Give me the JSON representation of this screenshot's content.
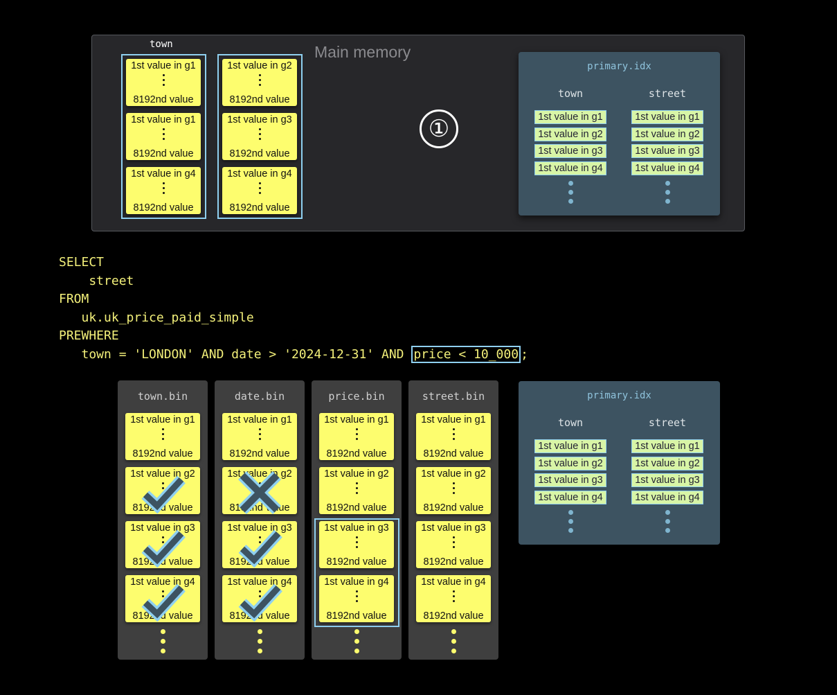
{
  "main_memory": {
    "label": "Main memory",
    "column_label": "town",
    "groups": [
      {
        "cards": [
          {
            "first": "1st value in g1",
            "last": "8192nd value"
          },
          {
            "first": "1st value in g1",
            "last": "8192nd value"
          },
          {
            "first": "1st value in g4",
            "last": "8192nd value"
          }
        ]
      },
      {
        "cards": [
          {
            "first": "1st value in g2",
            "last": "8192nd value"
          },
          {
            "first": "1st value in g3",
            "last": "8192nd value"
          },
          {
            "first": "1st value in g4",
            "last": "8192nd value"
          }
        ]
      }
    ],
    "step_marker": "①"
  },
  "primary_idx_top": {
    "title": "primary.idx",
    "columns": [
      {
        "name": "town",
        "entries": [
          "1st value in g1",
          "1st value in g2",
          "1st value in g3",
          "1st value in g4"
        ]
      },
      {
        "name": "street",
        "entries": [
          "1st value in g1",
          "1st value in g2",
          "1st value in g3",
          "1st value in g4"
        ]
      }
    ]
  },
  "query": {
    "lines": [
      "SELECT",
      "    street",
      "FROM",
      "   uk.uk_price_paid_simple",
      "PREWHERE"
    ],
    "last_line_prefix": "   town = 'LONDON' AND date > '2024-12-31' AND ",
    "highlighted": "price < 10_000",
    "last_line_suffix": ";"
  },
  "bin_files": [
    {
      "name": "town.bin",
      "granules": [
        "1st value in g1",
        "1st value in g2",
        "1st value in g3",
        "1st value in g4"
      ],
      "last": "8192nd value",
      "marks": [
        null,
        "check",
        "check",
        "check"
      ]
    },
    {
      "name": "date.bin",
      "granules": [
        "1st value in g1",
        "1st value in g2",
        "1st value in g3",
        "1st value in g4"
      ],
      "last": "8192nd value",
      "marks": [
        null,
        "cross",
        "check",
        "check"
      ]
    },
    {
      "name": "price.bin",
      "granules": [
        "1st value in g1",
        "1st value in g2",
        "1st value in g3",
        "1st value in g4"
      ],
      "last": "8192nd value",
      "marks": [
        null,
        null,
        null,
        null
      ],
      "highlighted_granules": [
        3,
        4
      ]
    },
    {
      "name": "street.bin",
      "granules": [
        "1st value in g1",
        "1st value in g2",
        "1st value in g3",
        "1st value in g4"
      ],
      "last": "8192nd value",
      "marks": [
        null,
        null,
        null,
        null
      ]
    }
  ],
  "primary_idx_bottom": {
    "title": "primary.idx",
    "columns": [
      {
        "name": "town",
        "entries": [
          "1st value in g1",
          "1st value in g2",
          "1st value in g3",
          "1st value in g4"
        ]
      },
      {
        "name": "street",
        "entries": [
          "1st value in g1",
          "1st value in g2",
          "1st value in g3",
          "1st value in g4"
        ]
      }
    ]
  },
  "colors": {
    "card": "#fdfd6e",
    "highlight": "#8fd0f0",
    "index_panel": "#3d5361",
    "sql": "#f3f07a",
    "mark": "#3d5361"
  }
}
